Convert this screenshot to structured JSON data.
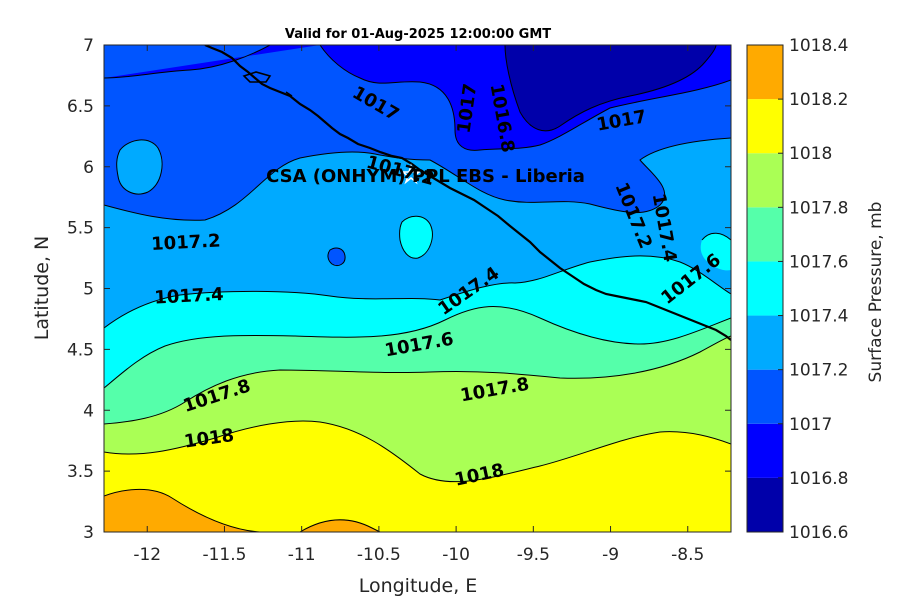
{
  "chart_data": {
    "type": "contour",
    "title": "Valid for 01-Aug-2025 12:00:00 GMT",
    "xlabel": "Longitude, E",
    "ylabel": "Latitude, N",
    "xlim": [
      -12.28,
      -8.22
    ],
    "ylim": [
      3,
      7
    ],
    "x_ticks": [
      -12,
      -11.5,
      -11,
      -10.5,
      -10,
      -9.5,
      -9,
      -8.5
    ],
    "x_tick_labels": [
      "-12",
      "-11.5",
      "-11",
      "-10.5",
      "-10",
      "-9.5",
      "-9",
      "-8.5"
    ],
    "y_ticks": [
      3,
      3.5,
      4,
      4.5,
      5,
      5.5,
      6,
      6.5,
      7
    ],
    "y_tick_labels": [
      "3",
      "3.5",
      "4",
      "4.5",
      "5",
      "5.5",
      "6",
      "6.5",
      "7"
    ],
    "colorbar": {
      "label": "Surface Pressure, mb",
      "levels": [
        1016.6,
        1016.8,
        1017,
        1017.2,
        1017.4,
        1017.6,
        1017.8,
        1018,
        1018.2,
        1018.4
      ],
      "level_labels": [
        "1016.6",
        "1016.8",
        "1017",
        "1017.2",
        "1017.4",
        "1017.6",
        "1017.8",
        "1018",
        "1018.2",
        "1018.4"
      ],
      "colors": [
        "#0000aa",
        "#0000ff",
        "#0055ff",
        "#00aaff",
        "#00ffff",
        "#55ffaa",
        "#aaff55",
        "#ffff00",
        "#ffaa00",
        "#ff5500"
      ]
    },
    "contour_bands": [
      {
        "level_min": 1018.2,
        "level_max": 1018.4,
        "color": "#ff5500"
      },
      {
        "level_min": 1018,
        "level_max": 1018.2,
        "color": "#ffaa00"
      },
      {
        "level_min": 1017.8,
        "level_max": 1018,
        "color": "#ffff00"
      },
      {
        "level_min": 1017.6,
        "level_max": 1017.8,
        "color": "#aaff55"
      },
      {
        "level_min": 1017.4,
        "level_max": 1017.6,
        "color": "#55ffaa"
      },
      {
        "level_min": 1017.2,
        "level_max": 1017.4,
        "color": "#00ffff"
      },
      {
        "level_min": 1017,
        "level_max": 1017.2,
        "color": "#00aaff"
      },
      {
        "level_min": 1016.8,
        "level_max": 1017,
        "color": "#0055ff"
      },
      {
        "level_min": 1016.6,
        "level_max": 1016.8,
        "color": "#0000aa"
      }
    ],
    "contour_labels": [
      {
        "text": "1017",
        "lon": -10.52,
        "lat": 6.52,
        "angle": 30
      },
      {
        "text": "1017",
        "lon": -9.93,
        "lat": 6.48,
        "angle": -82
      },
      {
        "text": "1016.8",
        "lon": -9.7,
        "lat": 6.4,
        "angle": 80
      },
      {
        "text": "1017",
        "lon": -8.93,
        "lat": 6.38,
        "angle": -10
      },
      {
        "text": "1017.2",
        "lon": -10.36,
        "lat": 5.97,
        "angle": 15
      },
      {
        "text": "1017.2",
        "lon": -8.85,
        "lat": 5.6,
        "angle": 68
      },
      {
        "text": "1017.4",
        "lon": -8.65,
        "lat": 5.5,
        "angle": 80
      },
      {
        "text": "1017.2",
        "lon": -11.75,
        "lat": 5.38,
        "angle": -3
      },
      {
        "text": "1017.6",
        "lon": -8.48,
        "lat": 5.08,
        "angle": -38
      },
      {
        "text": "1017.4",
        "lon": -11.73,
        "lat": 4.94,
        "angle": -3
      },
      {
        "text": "1017.4",
        "lon": -9.92,
        "lat": 4.98,
        "angle": -35
      },
      {
        "text": "1017.6",
        "lon": -10.24,
        "lat": 4.54,
        "angle": -10
      },
      {
        "text": "1017.8",
        "lon": -11.55,
        "lat": 4.12,
        "angle": -18
      },
      {
        "text": "1017.8",
        "lon": -9.75,
        "lat": 4.17,
        "angle": -10
      },
      {
        "text": "1018",
        "lon": -11.6,
        "lat": 3.77,
        "angle": -8
      },
      {
        "text": "1018",
        "lon": -9.85,
        "lat": 3.47,
        "angle": -12
      }
    ],
    "station": {
      "name": "CSA (ONHYM) PPL EBS  - Liberia",
      "lon": -10.25,
      "lat": 6.07,
      "marker": "star"
    }
  }
}
